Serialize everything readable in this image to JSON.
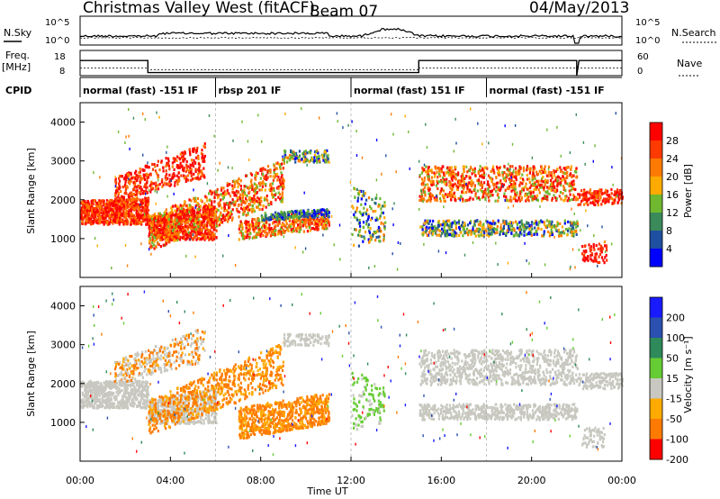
{
  "header": {
    "station": "Christmas Valley West (fitACF)",
    "beam": "Beam 07",
    "date": "04/May/2013"
  },
  "labels": {
    "nsky": "N.Sky",
    "nsearch": "N.Search",
    "freq": "Freq.",
    "freq_unit": "[MHz]",
    "nave": "Nave",
    "cpid": "CPID",
    "x_axis": "Time UT",
    "y_axis": "Slant Range [km]",
    "power_bar": "Power [dB]",
    "velocity_bar": "Velocity [m s⁻¹]"
  },
  "ticks": {
    "noise_left": [
      "10^5",
      "10^0"
    ],
    "noise_right": [
      "10^5",
      "10^0"
    ],
    "freq_left": [
      "18",
      "8"
    ],
    "nave_right": [
      "60",
      "0"
    ],
    "time": [
      "00:00",
      "04:00",
      "08:00",
      "12:00",
      "16:00",
      "20:00",
      "00:00"
    ],
    "range": [
      "1000",
      "2000",
      "3000",
      "4000"
    ],
    "power": [
      "28",
      "24",
      "20",
      "16",
      "12",
      "8",
      "4"
    ],
    "velocity": [
      "200",
      "100",
      "50",
      "15",
      "-15",
      "-50",
      "-100",
      "-200"
    ]
  },
  "cpid_segments": [
    {
      "label": "normal (fast) -151 IF",
      "start": 0,
      "end": 6
    },
    {
      "label": "rbsp 201 IF",
      "start": 6,
      "end": 12
    },
    {
      "label": "normal (fast) 151 IF",
      "start": 12,
      "end": 18
    },
    {
      "label": "normal (fast) -151 IF",
      "start": 18,
      "end": 24
    }
  ],
  "colors": {
    "power_scale": [
      "#ff0000",
      "#ff3a00",
      "#ff7a00",
      "#ffaa00",
      "#6fb830",
      "#3a8a5a",
      "#1f4fa0",
      "#0000ff"
    ],
    "velocity_scale": [
      "#1a1aff",
      "#2a50b0",
      "#2e8a5a",
      "#66cc33",
      "#c8c8c0",
      "#ffaa00",
      "#ff7a00",
      "#ff0000"
    ]
  },
  "chart_data": [
    {
      "type": "heatmap",
      "title": "Power",
      "xlabel": "Time UT",
      "ylabel": "Slant Range [km]",
      "xlim": [
        0,
        24
      ],
      "ylim": [
        0,
        4500
      ],
      "colorbar_label": "Power [dB]",
      "colorbar_ticks": [
        4,
        8,
        12,
        16,
        20,
        24,
        28
      ]
    },
    {
      "type": "heatmap",
      "title": "Velocity",
      "xlabel": "Time UT",
      "ylabel": "Slant Range [km]",
      "xlim": [
        0,
        24
      ],
      "ylim": [
        0,
        4500
      ],
      "colorbar_label": "Velocity [m s⁻¹]",
      "colorbar_ticks": [
        -200,
        -100,
        -50,
        -15,
        15,
        50,
        100,
        200
      ]
    }
  ]
}
